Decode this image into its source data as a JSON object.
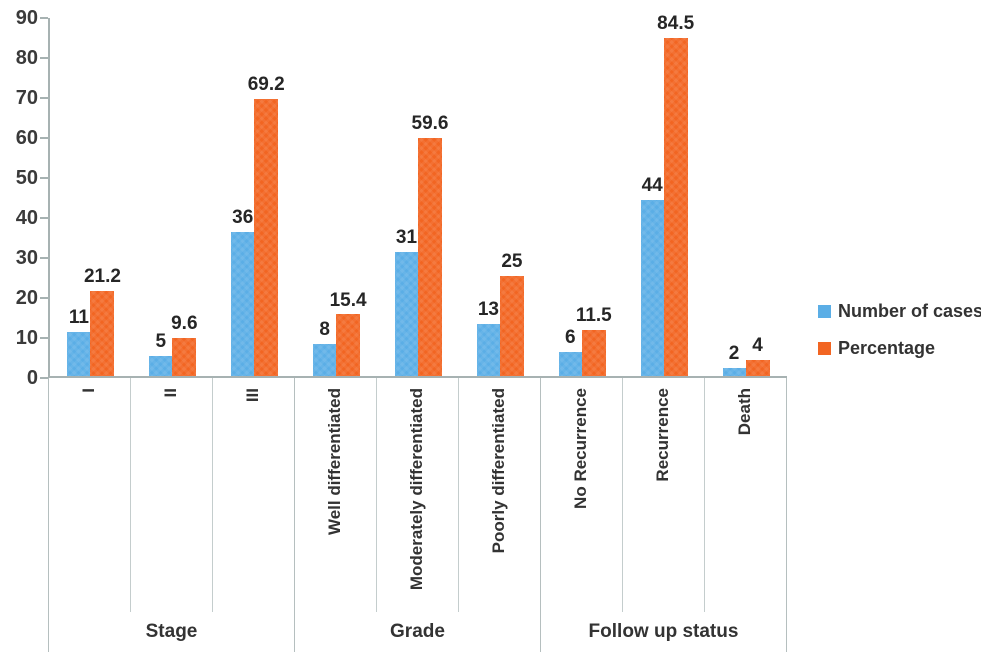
{
  "chart_data": {
    "type": "bar",
    "title": "",
    "xlabel": "",
    "ylabel": "",
    "ylim": [
      0,
      90
    ],
    "yticks": [
      0,
      10,
      20,
      30,
      40,
      50,
      60,
      70,
      80,
      90
    ],
    "grid": false,
    "legend_position": "right",
    "series": [
      {
        "name": "Number of cases",
        "color": "#5BAEE6"
      },
      {
        "name": "Percentage",
        "color": "#F26522"
      }
    ],
    "groups": [
      {
        "label": "Stage",
        "categories": [
          {
            "label": "I",
            "values": [
              11,
              21.2
            ]
          },
          {
            "label": "II",
            "values": [
              5,
              9.6
            ]
          },
          {
            "label": "III",
            "values": [
              36,
              69.2
            ]
          }
        ]
      },
      {
        "label": "Grade",
        "categories": [
          {
            "label": "Well differentiated",
            "values": [
              8,
              15.4
            ]
          },
          {
            "label": "Moderately differentiated",
            "values": [
              31,
              59.6
            ]
          },
          {
            "label": "Poorly differentiated",
            "values": [
              13,
              25
            ]
          }
        ]
      },
      {
        "label": "Follow up status",
        "categories": [
          {
            "label": "No Recurrence",
            "values": [
              6,
              11.5
            ]
          },
          {
            "label": "Recurrence",
            "values": [
              44,
              84.5
            ]
          },
          {
            "label": "Death",
            "values": [
              2,
              4
            ]
          }
        ]
      }
    ]
  },
  "colors": {
    "series_blue": "#5BAEE6",
    "series_orange": "#F26522",
    "axis_line": "#A7B2B2",
    "divider_line": "#C4CDCD",
    "label_text": "#333333"
  }
}
